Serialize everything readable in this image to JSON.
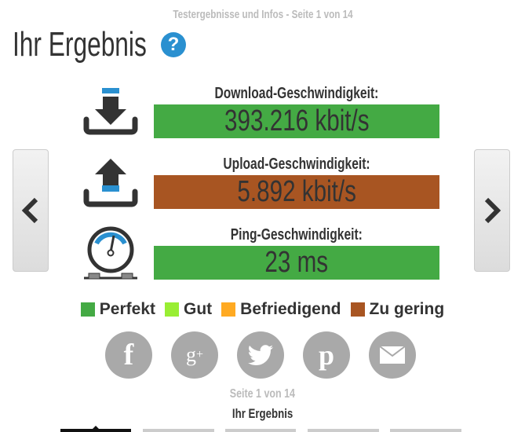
{
  "header": {
    "subtitle": "Testergebnisse und Infos - Seite 1 von 14",
    "title": "Ihr Ergebnis",
    "help_icon": "question-icon"
  },
  "results": [
    {
      "label": "Download-Geschwindigkeit:",
      "value": "393.216 kbit/s",
      "color": "#44aa44",
      "icon": "download-icon"
    },
    {
      "label": "Upload-Geschwindigkeit:",
      "value": "5.892 kbit/s",
      "color": "#a85522",
      "icon": "upload-icon"
    },
    {
      "label": "Ping-Geschwindigkeit:",
      "value": "23 ms",
      "color": "#44aa44",
      "icon": "speedometer-icon"
    }
  ],
  "legend": [
    {
      "label": "Perfekt",
      "color": "#44aa44"
    },
    {
      "label": "Gut",
      "color": "#99ee33"
    },
    {
      "label": "Befriedigend",
      "color": "#ffaa22"
    },
    {
      "label": "Zu gering",
      "color": "#a85522"
    }
  ],
  "social": [
    "facebook",
    "google-plus",
    "twitter",
    "pinterest",
    "email"
  ],
  "footer": {
    "page": "Seite 1 von 14",
    "section": "Ihr Ergebnis"
  },
  "pager": {
    "total_visible_tabs": 5,
    "active_tab": 1
  }
}
